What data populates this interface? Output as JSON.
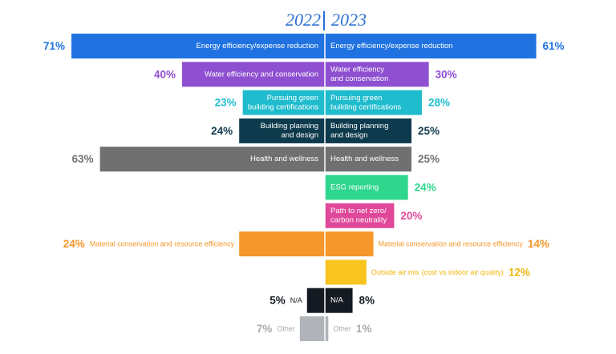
{
  "chart_data": {
    "type": "bar",
    "layout": "back-to-back horizontal bars",
    "years": {
      "left": "2022",
      "right": "2023"
    },
    "series": [
      {
        "name": "2022",
        "side": "left"
      },
      {
        "name": "2023",
        "side": "right"
      }
    ],
    "categories": [
      {
        "left_label": "Energy efficiency/expense reduction",
        "right_label": "Energy efficiency/expense reduction",
        "v2022": 71,
        "v2023": 61,
        "color": "#1f72e0",
        "label_color": "#1f72e0",
        "label_inside": true
      },
      {
        "left_label": "Water efficiency and conservation",
        "right_label": "Water efficiency\nand conservation",
        "v2022": 40,
        "v2023": 30,
        "color": "#8e4fd1",
        "label_color": "#8e4fd1",
        "label_inside": true
      },
      {
        "left_label": "Pursuing green\nbuilding certifications",
        "right_label": "Pursuing green\nbuilding certifications",
        "v2022": 23,
        "v2023": 28,
        "color": "#1fbccd",
        "label_color": "#1fbccd",
        "label_inside": true
      },
      {
        "left_label": "Building planning\nand design",
        "right_label": "Building planning\nand design",
        "v2022": 24,
        "v2023": 25,
        "color": "#0d3a4d",
        "label_color": "#0d3a4d",
        "label_inside": true
      },
      {
        "left_label": "Health and wellness",
        "right_label": "Health and wellness",
        "v2022": 63,
        "v2023": 25,
        "color": "#707070",
        "label_color": "#707070",
        "label_inside": true
      },
      {
        "left_label": "",
        "right_label": "ESG reporting",
        "v2022": null,
        "v2023": 24,
        "color": "#2ed68e",
        "label_color": "#2ed68e",
        "label_inside": true
      },
      {
        "left_label": "",
        "right_label": "Path to net zero/\ncarbon neutrality",
        "v2022": null,
        "v2023": 20,
        "color": "#e0489a",
        "label_color": "#e0489a",
        "label_inside": true
      },
      {
        "left_label": "Material conservation and resource efficiency",
        "right_label": "Material conservation and resource efficiency",
        "v2022": 24,
        "v2023": 14,
        "color": "#f5972a",
        "label_color": "#f5972a",
        "label_inside": false
      },
      {
        "left_label": "",
        "right_label": "Outside air mix (cost vs indoor air quality)",
        "v2022": null,
        "v2023": 12,
        "color": "#f8c41f",
        "label_color": "#f0b70f",
        "label_inside": false
      },
      {
        "left_label": "N/A",
        "right_label": "N/A",
        "v2022": 5,
        "v2023": 8,
        "color": "#151a22",
        "label_color": "#151a22",
        "label_inside": false,
        "right_inside": true
      },
      {
        "left_label": "Other",
        "right_label": "Other",
        "v2022": 7,
        "v2023": 1,
        "color": "#b0b3b8",
        "label_color": "#a8abb0",
        "label_inside": false
      }
    ]
  }
}
